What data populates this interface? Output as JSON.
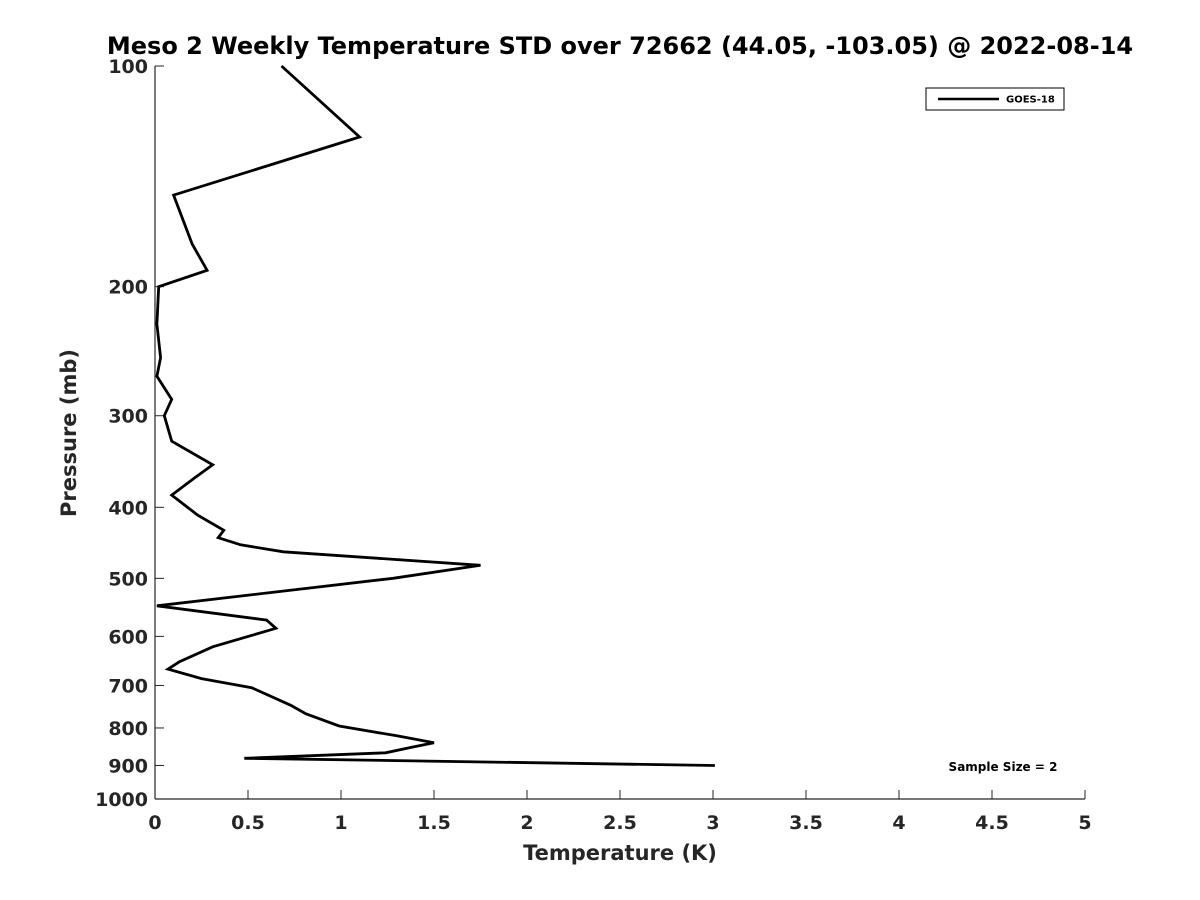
{
  "chart_data": {
    "type": "line",
    "title": "Meso 2 Weekly Temperature STD over 72662 (44.05, -103.05) @ 2022-08-14",
    "xlabel": "Temperature (K)",
    "ylabel": "Pressure (mb)",
    "xlim": [
      0,
      5
    ],
    "ylim": [
      100,
      1000
    ],
    "y_scale": "log",
    "y_reversed": true,
    "x_ticks": [
      "0",
      "0.5",
      "1",
      "1.5",
      "2",
      "2.5",
      "3",
      "3.5",
      "4",
      "4.5",
      "5"
    ],
    "y_ticks": [
      "100",
      "200",
      "300",
      "400",
      "500",
      "600",
      "700",
      "800",
      "900",
      "1000"
    ],
    "grid": false,
    "legend_position": "top-right",
    "series": [
      {
        "name": "GOES-18",
        "color": "#000000",
        "points": [
          {
            "x": 0.68,
            "y": 100
          },
          {
            "x": 1.1,
            "y": 125
          },
          {
            "x": 0.1,
            "y": 150
          },
          {
            "x": 0.2,
            "y": 175
          },
          {
            "x": 0.28,
            "y": 190
          },
          {
            "x": 0.02,
            "y": 200
          },
          {
            "x": 0.01,
            "y": 225
          },
          {
            "x": 0.03,
            "y": 250
          },
          {
            "x": 0.01,
            "y": 265
          },
          {
            "x": 0.09,
            "y": 285
          },
          {
            "x": 0.05,
            "y": 300
          },
          {
            "x": 0.09,
            "y": 325
          },
          {
            "x": 0.31,
            "y": 350
          },
          {
            "x": 0.21,
            "y": 365
          },
          {
            "x": 0.09,
            "y": 385
          },
          {
            "x": 0.23,
            "y": 410
          },
          {
            "x": 0.37,
            "y": 430
          },
          {
            "x": 0.34,
            "y": 440
          },
          {
            "x": 0.46,
            "y": 450
          },
          {
            "x": 0.69,
            "y": 460
          },
          {
            "x": 1.75,
            "y": 480
          },
          {
            "x": 1.28,
            "y": 500
          },
          {
            "x": 0.01,
            "y": 545
          },
          {
            "x": 0.6,
            "y": 570
          },
          {
            "x": 0.65,
            "y": 585
          },
          {
            "x": 0.31,
            "y": 620
          },
          {
            "x": 0.13,
            "y": 650
          },
          {
            "x": 0.07,
            "y": 665
          },
          {
            "x": 0.25,
            "y": 685
          },
          {
            "x": 0.52,
            "y": 705
          },
          {
            "x": 0.73,
            "y": 745
          },
          {
            "x": 0.81,
            "y": 765
          },
          {
            "x": 0.99,
            "y": 795
          },
          {
            "x": 1.3,
            "y": 820
          },
          {
            "x": 1.5,
            "y": 838
          },
          {
            "x": 1.38,
            "y": 850
          },
          {
            "x": 1.24,
            "y": 865
          },
          {
            "x": 0.48,
            "y": 880
          },
          {
            "x": 3.01,
            "y": 900
          }
        ]
      }
    ],
    "annotation": "Sample Size = 2"
  },
  "colors": {
    "line": "#000000",
    "axis": "#262626",
    "background": "#ffffff"
  }
}
